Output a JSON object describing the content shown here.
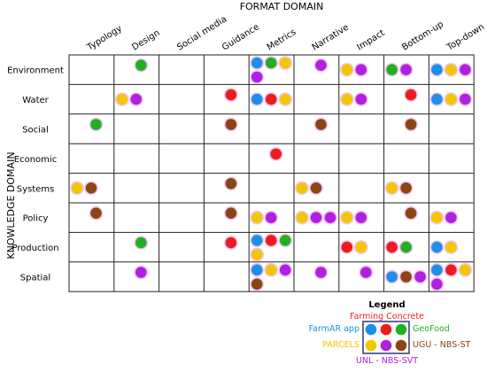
{
  "format_axis_label": "FORMAT DOMAIN",
  "knowledge_axis_label": "KNOWLEDGE DOMAIN",
  "columns": [
    "Typology",
    "Design",
    "Social media",
    "Guidance",
    "Metrics",
    "Narrative",
    "Impact",
    "Bottom-up",
    "Top-down"
  ],
  "rows": [
    "Environment",
    "Water",
    "Social",
    "Economic",
    "Systems",
    "Policy",
    "Production",
    "Spatial"
  ],
  "legend": {
    "title": "Legend",
    "apps": [
      {
        "label": "Farming Concrete",
        "color": "#ee1c1c"
      },
      {
        "label": "FarmAR app",
        "color": "#1e8fe8"
      },
      {
        "label": "GeoFood",
        "color": "#22b022"
      },
      {
        "label": "PARCELS",
        "color": "#f2c600"
      },
      {
        "label": "UGU - NBS-ST",
        "color": "#8b4513"
      },
      {
        "label": "UNL - NBS-SVT",
        "color": "#b020e0"
      }
    ]
  },
  "cells": [
    {
      "row": "Environment",
      "col": "Design",
      "apps": [
        "GeoFood"
      ]
    },
    {
      "row": "Environment",
      "col": "Metrics",
      "apps": [
        "FarmAR app",
        "GeoFood",
        "PARCELS",
        "UNL - NBS-SVT"
      ]
    },
    {
      "row": "Environment",
      "col": "Narrative",
      "apps": [
        "UNL - NBS-SVT"
      ]
    },
    {
      "row": "Environment",
      "col": "Impact",
      "apps": [
        "PARCELS",
        "UNL - NBS-SVT"
      ]
    },
    {
      "row": "Environment",
      "col": "Bottom-up",
      "apps": [
        "GeoFood",
        "UNL - NBS-SVT"
      ]
    },
    {
      "row": "Environment",
      "col": "Top-down",
      "apps": [
        "FarmAR app",
        "PARCELS",
        "UNL - NBS-SVT"
      ]
    },
    {
      "row": "Water",
      "col": "Design",
      "apps": [
        "PARCELS",
        "UNL - NBS-SVT"
      ]
    },
    {
      "row": "Water",
      "col": "Guidance",
      "apps": [
        "Farming Concrete"
      ]
    },
    {
      "row": "Water",
      "col": "Metrics",
      "apps": [
        "FarmAR app",
        "Farming Concrete",
        "PARCELS"
      ]
    },
    {
      "row": "Water",
      "col": "Impact",
      "apps": [
        "PARCELS",
        "UNL - NBS-SVT"
      ]
    },
    {
      "row": "Water",
      "col": "Bottom-up",
      "apps": [
        "Farming Concrete"
      ]
    },
    {
      "row": "Water",
      "col": "Top-down",
      "apps": [
        "FarmAR app",
        "PARCELS",
        "UNL - NBS-SVT"
      ]
    },
    {
      "row": "Social",
      "col": "Typology",
      "apps": [
        "GeoFood"
      ]
    },
    {
      "row": "Social",
      "col": "Guidance",
      "apps": [
        "UGU - NBS-ST"
      ]
    },
    {
      "row": "Social",
      "col": "Narrative",
      "apps": [
        "UGU - NBS-ST"
      ]
    },
    {
      "row": "Social",
      "col": "Bottom-up",
      "apps": [
        "UGU - NBS-ST"
      ]
    },
    {
      "row": "Economic",
      "col": "Metrics",
      "apps": [
        "Farming Concrete"
      ]
    },
    {
      "row": "Systems",
      "col": "Typology",
      "apps": [
        "PARCELS",
        "UGU - NBS-ST"
      ]
    },
    {
      "row": "Systems",
      "col": "Guidance",
      "apps": [
        "UGU - NBS-ST"
      ]
    },
    {
      "row": "Systems",
      "col": "Narrative",
      "apps": [
        "PARCELS",
        "UGU - NBS-ST"
      ]
    },
    {
      "row": "Systems",
      "col": "Bottom-up",
      "apps": [
        "PARCELS",
        "UGU - NBS-ST"
      ]
    },
    {
      "row": "Policy",
      "col": "Typology",
      "apps": [
        "UGU - NBS-ST"
      ]
    },
    {
      "row": "Policy",
      "col": "Guidance",
      "apps": [
        "UGU - NBS-ST"
      ]
    },
    {
      "row": "Policy",
      "col": "Metrics",
      "apps": [
        "PARCELS",
        "UNL - NBS-SVT"
      ]
    },
    {
      "row": "Policy",
      "col": "Narrative",
      "apps": [
        "PARCELS",
        "UNL - NBS-SVT",
        "UNL - NBS-SVT"
      ]
    },
    {
      "row": "Policy",
      "col": "Impact",
      "apps": [
        "PARCELS",
        "UNL - NBS-SVT"
      ]
    },
    {
      "row": "Policy",
      "col": "Bottom-up",
      "apps": [
        "UGU - NBS-ST"
      ]
    },
    {
      "row": "Policy",
      "col": "Top-down",
      "apps": [
        "PARCELS",
        "UNL - NBS-SVT"
      ]
    },
    {
      "row": "Production",
      "col": "Design",
      "apps": [
        "GeoFood"
      ]
    },
    {
      "row": "Production",
      "col": "Guidance",
      "apps": [
        "Farming Concrete"
      ]
    },
    {
      "row": "Production",
      "col": "Metrics",
      "apps": [
        "FarmAR app",
        "Farming Concrete",
        "GeoFood",
        "PARCELS"
      ]
    },
    {
      "row": "Production",
      "col": "Impact",
      "apps": [
        "Farming Concrete",
        "PARCELS"
      ]
    },
    {
      "row": "Production",
      "col": "Bottom-up",
      "apps": [
        "Farming Concrete",
        "GeoFood"
      ]
    },
    {
      "row": "Production",
      "col": "Top-down",
      "apps": [
        "FarmAR app",
        "PARCELS"
      ]
    },
    {
      "row": "Spatial",
      "col": "Design",
      "apps": [
        "UNL - NBS-SVT"
      ]
    },
    {
      "row": "Spatial",
      "col": "Metrics",
      "apps": [
        "FarmAR app",
        "PARCELS",
        "UNL - NBS-SVT",
        "UGU - NBS-ST"
      ]
    },
    {
      "row": "Spatial",
      "col": "Narrative",
      "apps": [
        "UNL - NBS-SVT"
      ]
    },
    {
      "row": "Spatial",
      "col": "Impact",
      "apps": [
        "UNL - NBS-SVT"
      ]
    },
    {
      "row": "Spatial",
      "col": "Bottom-up",
      "apps": [
        "FarmAR app",
        "UGU - NBS-ST",
        "UNL - NBS-SVT"
      ]
    },
    {
      "row": "Spatial",
      "col": "Top-down",
      "apps": [
        "FarmAR app",
        "Farming Concrete",
        "PARCELS",
        "UNL - NBS-SVT"
      ]
    }
  ]
}
